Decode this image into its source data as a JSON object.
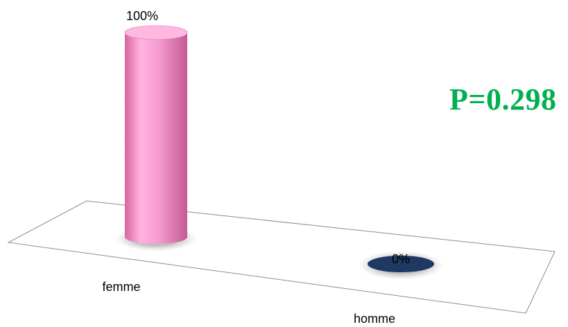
{
  "chart_data": {
    "type": "bar",
    "style": "3d-cylinder",
    "categories": [
      "femme",
      "homme"
    ],
    "values": [
      100,
      0
    ],
    "data_labels": [
      "100%",
      "0%"
    ],
    "ylim": [
      0,
      100
    ],
    "grid": false,
    "colors": [
      "#f49ad0",
      "#1f3864"
    ]
  },
  "annotation": {
    "text": "P=0.298",
    "color": "#00b050"
  }
}
